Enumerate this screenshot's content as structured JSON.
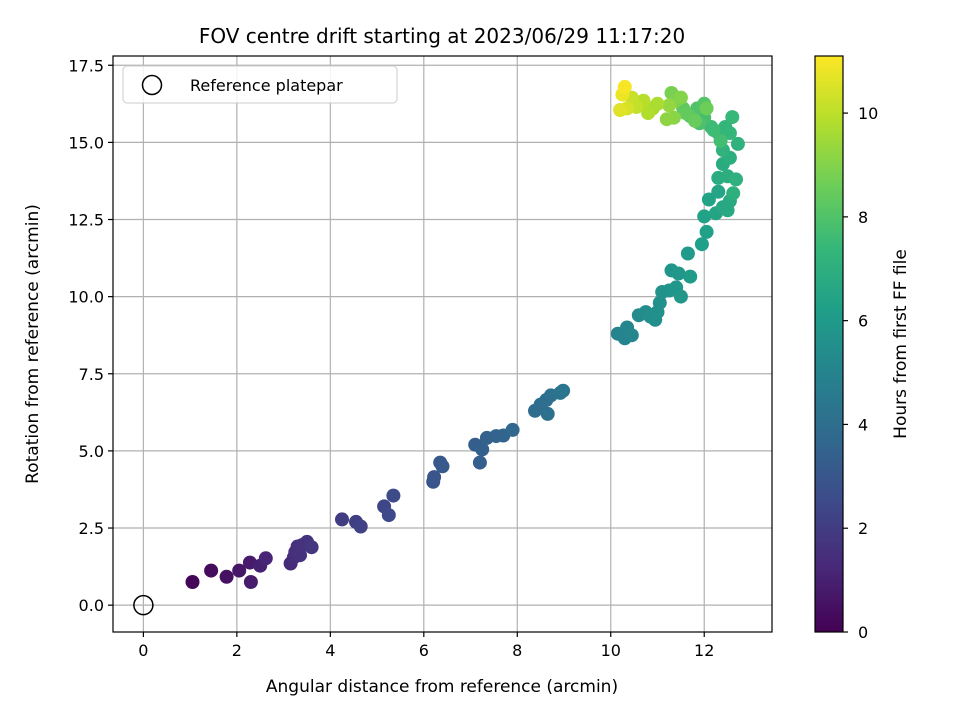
{
  "chart_data": {
    "type": "scatter",
    "title": "FOV centre drift starting at 2023/06/29 11:17:20",
    "xlabel": "Angular distance from reference (arcmin)",
    "ylabel": "Rotation from reference (arcmin)",
    "xlim": [
      -0.65,
      13.45
    ],
    "ylim": [
      -0.87,
      17.8
    ],
    "x_ticks": [
      0,
      2,
      4,
      6,
      8,
      10,
      12
    ],
    "x_tick_labels": [
      "0",
      "2",
      "4",
      "6",
      "8",
      "10",
      "12"
    ],
    "y_ticks": [
      0.0,
      2.5,
      5.0,
      7.5,
      10.0,
      12.5,
      15.0,
      17.5
    ],
    "y_tick_labels": [
      "0.0",
      "2.5",
      "5.0",
      "7.5",
      "10.0",
      "12.5",
      "15.0",
      "17.5"
    ],
    "grid": true,
    "legend": {
      "placement": "top-left",
      "entries": [
        "Reference platepar"
      ]
    },
    "reference_point": {
      "x": 0,
      "y": 0,
      "label": "Reference platepar"
    },
    "colorbar": {
      "label": "Hours from first FF file",
      "min": 0,
      "max": 11.1,
      "ticks": [
        0,
        2,
        4,
        6,
        8,
        10
      ],
      "tick_labels": [
        "0",
        "2",
        "4",
        "6",
        "8",
        "10"
      ],
      "colormap": "viridis"
    },
    "colormap_stops": [
      "#440154",
      "#482878",
      "#3e4989",
      "#31688e",
      "#26828e",
      "#1f9e89",
      "#35b779",
      "#6ece58",
      "#b5de2b",
      "#fde725"
    ],
    "series": [
      {
        "points": [
          [
            1.05,
            0.75,
            0.15
          ],
          [
            1.45,
            1.12,
            0.35
          ],
          [
            1.78,
            0.92,
            0.5
          ],
          [
            2.05,
            1.12,
            0.65
          ],
          [
            2.28,
            1.38,
            0.8
          ],
          [
            2.3,
            0.75,
            0.85
          ],
          [
            2.5,
            1.28,
            1.0
          ],
          [
            2.62,
            1.52,
            1.15
          ],
          [
            3.15,
            1.35,
            1.3
          ],
          [
            3.22,
            1.55,
            1.4
          ],
          [
            3.25,
            1.72,
            1.5
          ],
          [
            3.3,
            1.9,
            1.55
          ],
          [
            3.35,
            1.62,
            1.6
          ],
          [
            3.4,
            1.95,
            1.65
          ],
          [
            3.5,
            2.05,
            1.7
          ],
          [
            3.6,
            1.88,
            1.75
          ],
          [
            4.25,
            2.78,
            2.0
          ],
          [
            4.55,
            2.7,
            2.1
          ],
          [
            4.65,
            2.55,
            2.15
          ],
          [
            5.15,
            3.2,
            2.35
          ],
          [
            5.25,
            2.92,
            2.45
          ],
          [
            5.35,
            3.55,
            2.55
          ],
          [
            6.2,
            4.0,
            2.9
          ],
          [
            6.22,
            4.15,
            2.95
          ],
          [
            6.35,
            4.62,
            3.05
          ],
          [
            6.4,
            4.5,
            3.1
          ],
          [
            7.1,
            5.2,
            3.3
          ],
          [
            7.2,
            4.62,
            3.35
          ],
          [
            7.25,
            5.05,
            3.4
          ],
          [
            7.35,
            5.42,
            3.45
          ],
          [
            7.55,
            5.48,
            3.55
          ],
          [
            7.7,
            5.5,
            3.6
          ],
          [
            7.9,
            5.68,
            3.7
          ],
          [
            8.38,
            6.3,
            3.9
          ],
          [
            8.5,
            6.5,
            3.95
          ],
          [
            8.62,
            6.65,
            4.05
          ],
          [
            8.65,
            6.2,
            4.1
          ],
          [
            8.72,
            6.8,
            4.15
          ],
          [
            8.92,
            6.88,
            4.25
          ],
          [
            8.98,
            6.95,
            4.3
          ],
          [
            10.15,
            8.8,
            5.0
          ],
          [
            10.3,
            8.65,
            5.05
          ],
          [
            10.35,
            9.0,
            5.1
          ],
          [
            10.45,
            8.75,
            5.15
          ],
          [
            10.6,
            9.4,
            5.3
          ],
          [
            10.75,
            9.5,
            5.4
          ],
          [
            10.85,
            9.35,
            5.45
          ],
          [
            10.95,
            9.25,
            5.5
          ],
          [
            11.0,
            9.5,
            5.55
          ],
          [
            11.05,
            9.8,
            5.6
          ],
          [
            11.1,
            10.15,
            5.65
          ],
          [
            11.25,
            10.2,
            5.7
          ],
          [
            11.3,
            10.85,
            5.75
          ],
          [
            11.4,
            10.3,
            5.8
          ],
          [
            11.45,
            10.75,
            5.85
          ],
          [
            11.5,
            10.0,
            5.9
          ],
          [
            11.65,
            11.4,
            6.0
          ],
          [
            11.7,
            10.65,
            6.05
          ],
          [
            11.95,
            11.7,
            6.2
          ],
          [
            12.05,
            12.1,
            6.3
          ],
          [
            12.0,
            12.6,
            6.35
          ],
          [
            12.1,
            13.15,
            6.4
          ],
          [
            12.25,
            12.7,
            6.45
          ],
          [
            12.3,
            13.4,
            6.5
          ],
          [
            12.4,
            12.9,
            6.6
          ],
          [
            12.5,
            12.8,
            6.65
          ],
          [
            12.55,
            13.1,
            6.7
          ],
          [
            12.3,
            13.85,
            6.8
          ],
          [
            12.4,
            14.3,
            6.85
          ],
          [
            12.5,
            13.9,
            6.9
          ],
          [
            12.55,
            14.5,
            6.95
          ],
          [
            12.62,
            13.35,
            7.0
          ],
          [
            12.68,
            13.8,
            7.05
          ],
          [
            12.72,
            14.95,
            7.1
          ],
          [
            12.4,
            14.75,
            7.15
          ],
          [
            12.3,
            15.3,
            7.25
          ],
          [
            12.45,
            15.5,
            7.3
          ],
          [
            12.55,
            15.3,
            7.35
          ],
          [
            12.6,
            15.82,
            7.45
          ],
          [
            12.15,
            15.5,
            7.55
          ],
          [
            12.2,
            15.4,
            7.6
          ],
          [
            12.35,
            15.05,
            7.7
          ],
          [
            12.0,
            15.8,
            7.8
          ],
          [
            11.9,
            15.62,
            7.9
          ],
          [
            11.85,
            16.1,
            8.0
          ],
          [
            12.0,
            16.25,
            8.1
          ],
          [
            11.7,
            15.85,
            8.2
          ],
          [
            11.55,
            16.1,
            8.3
          ],
          [
            11.6,
            15.95,
            8.4
          ],
          [
            11.8,
            15.7,
            8.5
          ],
          [
            12.05,
            16.1,
            8.6
          ],
          [
            11.3,
            16.6,
            8.8
          ],
          [
            11.4,
            16.35,
            8.9
          ],
          [
            11.5,
            16.45,
            9.0
          ],
          [
            11.35,
            15.8,
            9.1
          ],
          [
            11.2,
            15.75,
            9.2
          ],
          [
            11.25,
            16.2,
            9.3
          ],
          [
            10.9,
            16.1,
            9.6
          ],
          [
            11.0,
            16.25,
            9.7
          ],
          [
            10.8,
            15.95,
            9.8
          ],
          [
            10.7,
            16.35,
            9.9
          ],
          [
            10.55,
            16.15,
            10.1
          ],
          [
            10.45,
            16.45,
            10.2
          ],
          [
            10.35,
            16.1,
            10.4
          ],
          [
            10.2,
            16.05,
            10.6
          ],
          [
            10.25,
            16.55,
            10.8
          ],
          [
            10.3,
            16.8,
            11.0
          ]
        ]
      }
    ]
  }
}
